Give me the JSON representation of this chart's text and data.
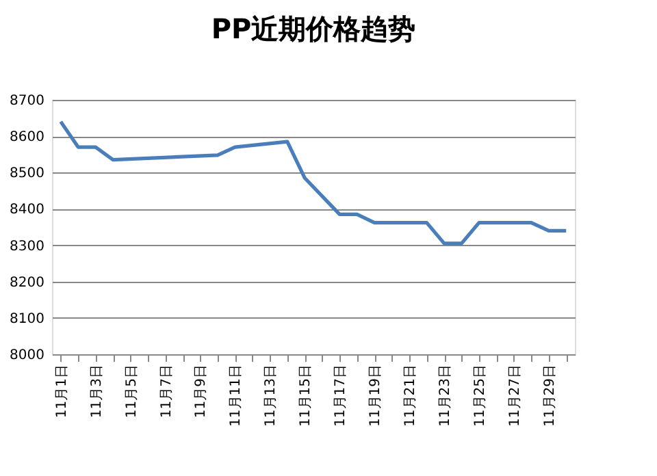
{
  "chart_data": {
    "type": "line",
    "title": "PP近期价格趋势",
    "categories": [
      "11月1日",
      null,
      "11月3日",
      null,
      "11月5日",
      null,
      "11月7日",
      null,
      "11月9日",
      null,
      "11月11日",
      null,
      "11月13日",
      null,
      "11月15日",
      null,
      "11月17日",
      null,
      "11月19日",
      null,
      "11月21日",
      null,
      "11月23日",
      null,
      "11月25日",
      null,
      "11月27日",
      null,
      "11月29日",
      null
    ],
    "series": [
      {
        "color": "#4a7ebb",
        "values": [
          8640,
          8570,
          8570,
          8535,
          null,
          null,
          null,
          null,
          null,
          8548,
          8570,
          null,
          null,
          8585,
          8485,
          null,
          8385,
          8385,
          8362,
          null,
          null,
          8362,
          8305,
          8305,
          8362,
          null,
          null,
          8362,
          8340,
          8340
        ]
      }
    ],
    "ylim": [
      8000,
      8700
    ],
    "yticks": [
      8000,
      8100,
      8200,
      8300,
      8400,
      8500,
      8600,
      8700
    ],
    "grid": "y",
    "legend": false,
    "marker": "none",
    "line_style": "solid"
  }
}
